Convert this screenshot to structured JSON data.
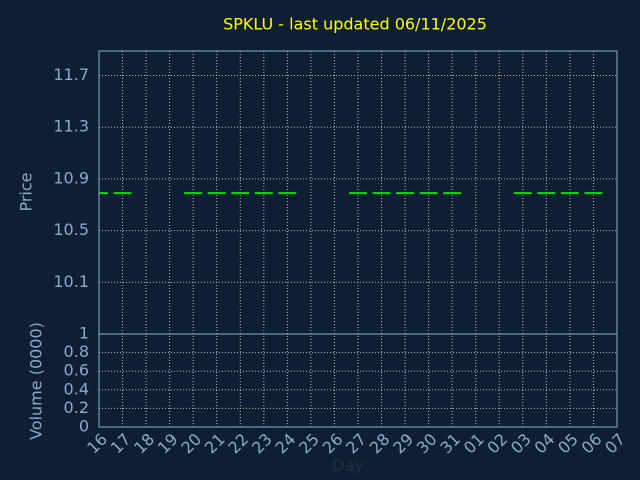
{
  "chart_data": [
    {
      "type": "line",
      "title": "SPKLU - last updated 06/11/2025",
      "y_label": "Price",
      "categories": [
        "16",
        "17",
        "18",
        "19",
        "20",
        "21",
        "22",
        "23",
        "24",
        "25",
        "26",
        "27",
        "28",
        "29",
        "30",
        "31",
        "01",
        "02",
        "03",
        "04",
        "05",
        "06",
        "07"
      ],
      "values": [
        10.79,
        10.79,
        null,
        null,
        10.79,
        10.79,
        10.79,
        10.79,
        10.79,
        null,
        null,
        10.79,
        10.79,
        10.79,
        10.79,
        10.79,
        null,
        null,
        10.79,
        10.79,
        10.79,
        10.79,
        null
      ],
      "color": "#00e000",
      "ylim": [
        9.7,
        11.89
      ],
      "yticks": [
        10.1,
        10.5,
        10.9,
        11.3,
        11.7
      ],
      "grid": true
    },
    {
      "type": "bar",
      "x_label": "Day",
      "y_label": "Volume (0000)",
      "ylim": [
        0,
        1
      ],
      "yticks": [
        0,
        0.2,
        0.4,
        0.6,
        0.8,
        1
      ],
      "grid": true
    }
  ]
}
